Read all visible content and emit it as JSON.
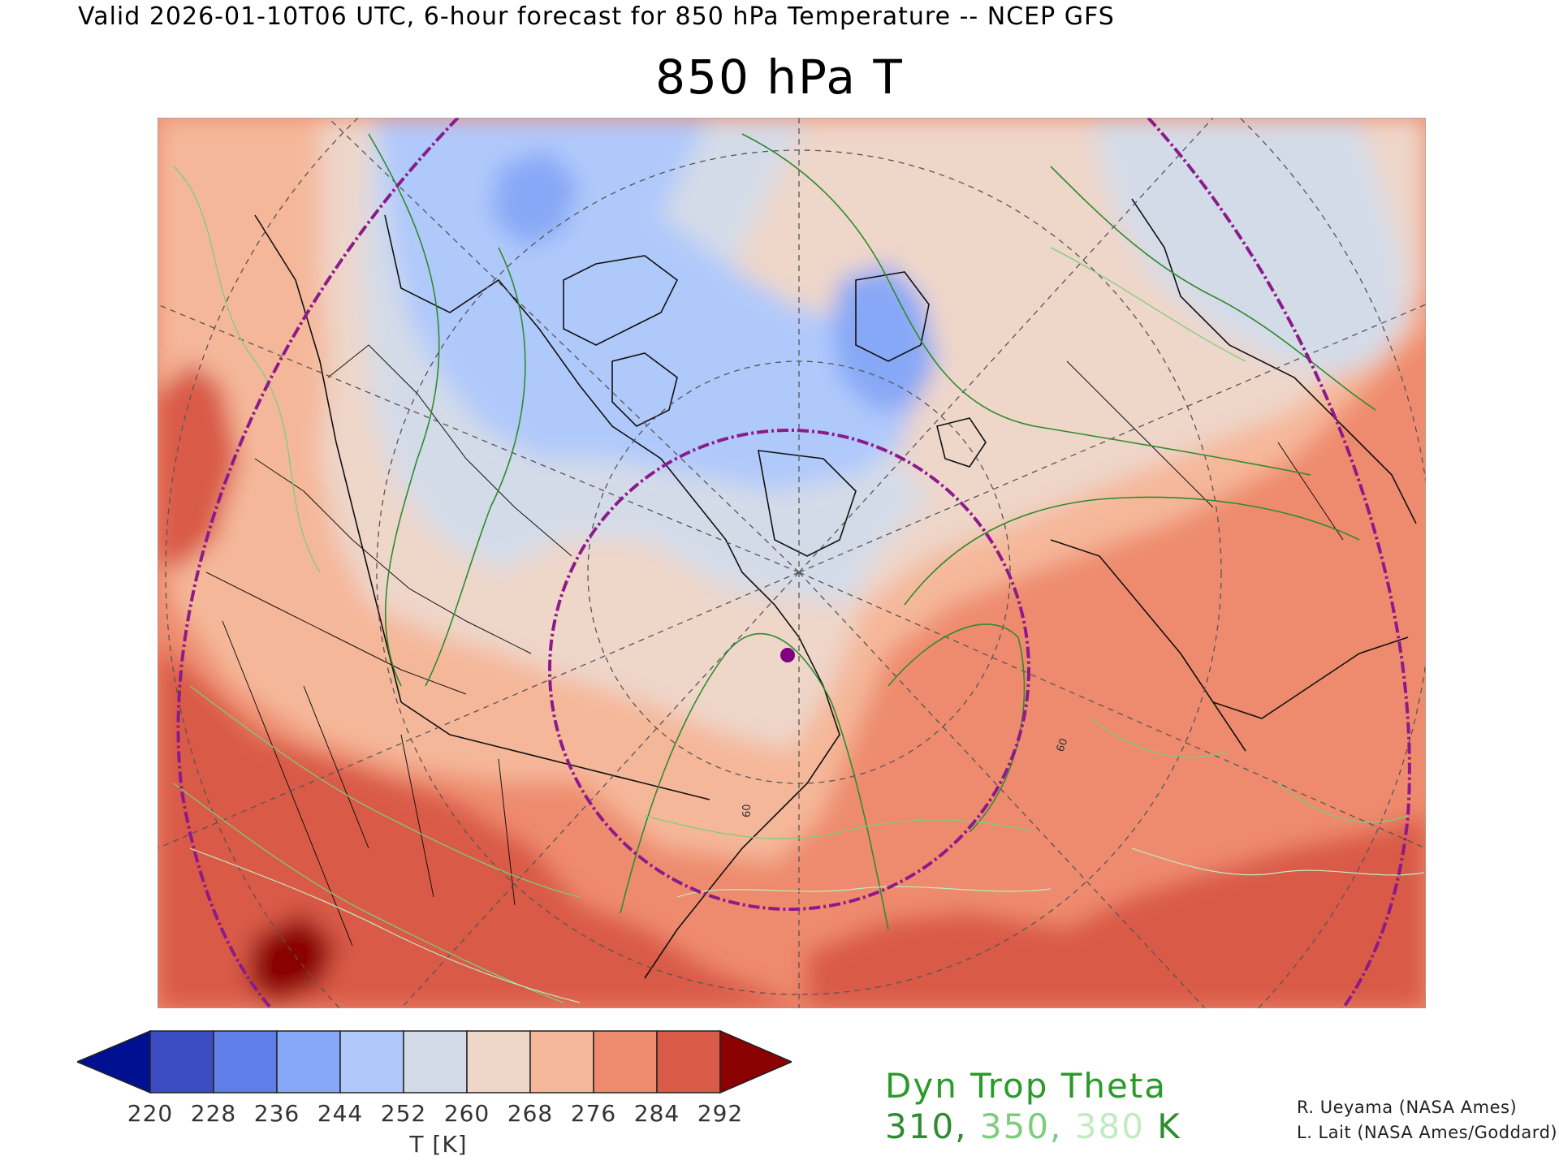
{
  "header": "Valid 2026-01-10T06 UTC, 6-hour forecast for 850 hPa Temperature -- NCEP GFS",
  "title": "850 hPa T",
  "colorbar": {
    "ticks": [
      "220",
      "228",
      "236",
      "244",
      "252",
      "260",
      "268",
      "276",
      "284",
      "292"
    ],
    "unit": "T [K]",
    "colors": [
      "#3b4cc0",
      "#5f7ee8",
      "#87a8f6",
      "#b0c9fb",
      "#d4dbe8",
      "#eed6c9",
      "#f5b79a",
      "#ee8b6e",
      "#d95a47"
    ],
    "under_color": "#001090",
    "over_color": "#8b0000"
  },
  "contours": {
    "title": "Dyn Trop Theta",
    "levels": [
      {
        "value": "310",
        "sep": ", ",
        "color": "#2e8b2e"
      },
      {
        "value": "350",
        "sep": ", ",
        "color": "#7ccd7c"
      },
      {
        "value": "380",
        "sep": " ",
        "color": "#c1ebc1"
      }
    ],
    "unit": "K",
    "unit_color": "#2e8b2e"
  },
  "credits": [
    "R. Ueyama (NASA Ames)",
    "L. Lait (NASA Ames/Goddard)"
  ],
  "map": {
    "graticule_labels": [
      "60",
      "60"
    ],
    "marker_color": "#800080",
    "circle_color": "#8b1a8b"
  }
}
